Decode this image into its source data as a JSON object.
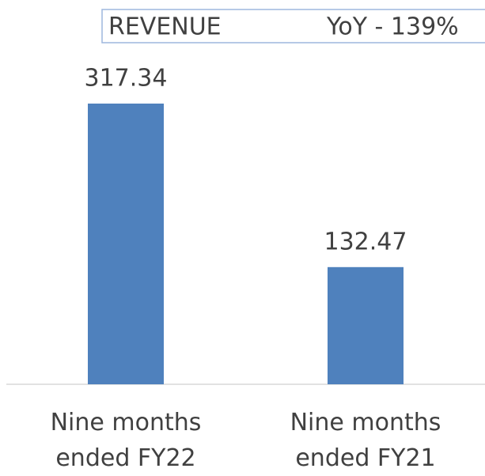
{
  "chart_data": {
    "type": "bar",
    "annotations": [
      "REVENUE",
      "YoY - 139%"
    ],
    "categories": [
      "Nine months ended FY22",
      "Nine months ended FY21"
    ],
    "values": [
      317.34,
      132.47
    ],
    "color": "#4f81bd"
  }
}
